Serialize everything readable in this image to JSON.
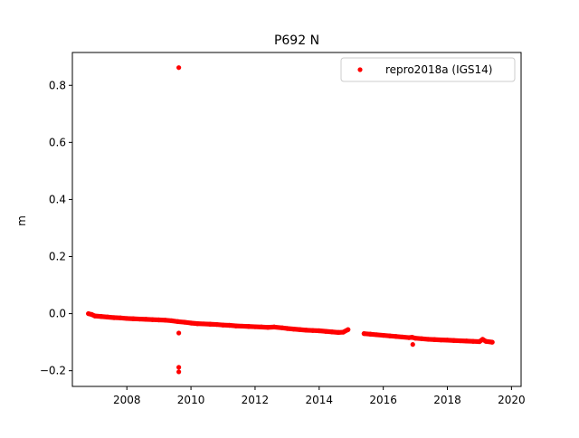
{
  "chart_data": {
    "type": "scatter",
    "title": "P692 N",
    "xlabel": "",
    "ylabel": "m",
    "xlim": [
      2006.3,
      2020.3
    ],
    "ylim": [
      -0.255,
      0.915
    ],
    "xticks": [
      2008,
      2010,
      2012,
      2014,
      2016,
      2018,
      2020
    ],
    "xtick_labels": [
      "2008",
      "2010",
      "2012",
      "2014",
      "2016",
      "2018",
      "2020"
    ],
    "yticks": [
      -0.2,
      0.0,
      0.2,
      0.4,
      0.6,
      0.8
    ],
    "ytick_labels": [
      "−0.2",
      "0.0",
      "0.2",
      "0.4",
      "0.6",
      "0.8"
    ],
    "grid": false,
    "legend_position": "top-right",
    "series": [
      {
        "name": "repro2018a (IGS14)",
        "color": "#ff0000",
        "marker": "circle",
        "x": [
          2006.8,
          2006.9,
          2007.0,
          2007.2,
          2007.4,
          2007.6,
          2007.8,
          2008.0,
          2008.2,
          2008.4,
          2008.6,
          2008.8,
          2009.0,
          2009.2,
          2009.4,
          2009.6,
          2009.8,
          2010.0,
          2010.2,
          2010.4,
          2010.6,
          2010.8,
          2011.0,
          2011.2,
          2011.4,
          2011.6,
          2011.8,
          2012.0,
          2012.2,
          2012.4,
          2012.6,
          2012.85,
          2013.0,
          2013.2,
          2013.4,
          2013.6,
          2013.8,
          2014.0,
          2014.2,
          2014.4,
          2014.6,
          2014.75,
          2014.9,
          2015.4,
          2015.6,
          2015.8,
          2016.0,
          2016.2,
          2016.4,
          2016.6,
          2016.8,
          2016.9,
          2017.0,
          2017.2,
          2017.4,
          2017.6,
          2017.8,
          2018.0,
          2018.2,
          2018.4,
          2018.6,
          2018.8,
          2019.0,
          2019.1,
          2019.2,
          2019.4,
          2009.62,
          2009.62,
          2009.62,
          2009.62,
          2016.92
        ],
        "y": [
          0.0,
          -0.003,
          -0.008,
          -0.01,
          -0.012,
          -0.014,
          -0.015,
          -0.017,
          -0.018,
          -0.019,
          -0.02,
          -0.021,
          -0.022,
          -0.023,
          -0.025,
          -0.028,
          -0.03,
          -0.033,
          -0.035,
          -0.036,
          -0.037,
          -0.038,
          -0.04,
          -0.041,
          -0.043,
          -0.044,
          -0.045,
          -0.046,
          -0.047,
          -0.048,
          -0.047,
          -0.05,
          -0.052,
          -0.054,
          -0.056,
          -0.058,
          -0.059,
          -0.06,
          -0.062,
          -0.064,
          -0.066,
          -0.065,
          -0.056,
          -0.07,
          -0.072,
          -0.074,
          -0.076,
          -0.078,
          -0.08,
          -0.082,
          -0.084,
          -0.083,
          -0.086,
          -0.088,
          -0.09,
          -0.091,
          -0.092,
          -0.093,
          -0.094,
          -0.095,
          -0.096,
          -0.097,
          -0.098,
          -0.09,
          -0.097,
          -0.1,
          0.862,
          -0.068,
          -0.188,
          -0.204,
          -0.108
        ]
      }
    ]
  }
}
